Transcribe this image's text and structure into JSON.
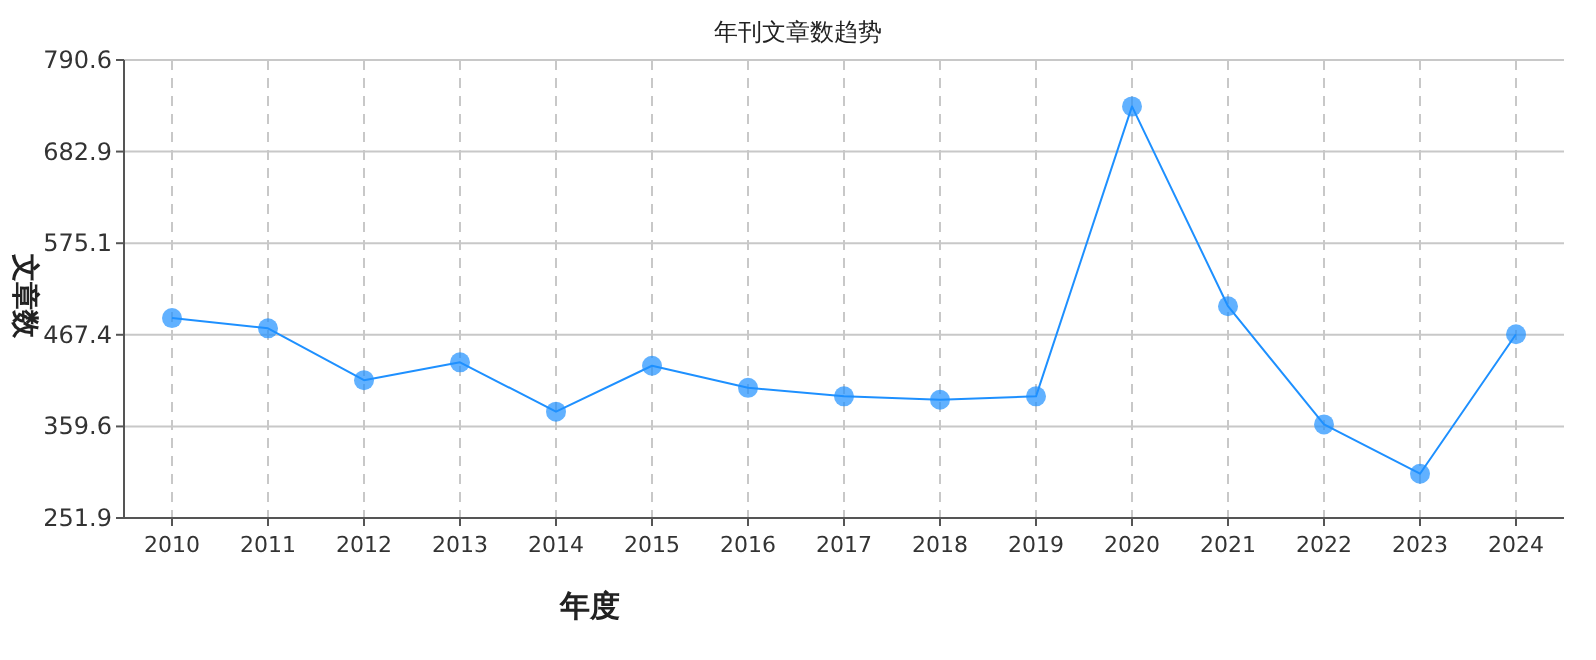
{
  "chart_data": {
    "type": "line",
    "title": "年刊文章数趋势",
    "xlabel": "年度",
    "ylabel": "文章数",
    "categories": [
      "2010",
      "2011",
      "2012",
      "2013",
      "2014",
      "2015",
      "2016",
      "2017",
      "2018",
      "2019",
      "2020",
      "2021",
      "2022",
      "2023",
      "2024"
    ],
    "series": [
      {
        "color": "#1e90ff",
        "values": [
          487,
          475,
          414,
          435,
          377,
          431,
          405,
          395,
          391,
          395,
          736,
          501,
          362,
          304,
          468
        ]
      }
    ],
    "ylim": [
      251.9,
      790.6
    ],
    "yticks": [
      251.9,
      359.6,
      467.4,
      575.1,
      682.9,
      790.6
    ],
    "grid": true,
    "marker": "circle",
    "line_style": "solid"
  }
}
